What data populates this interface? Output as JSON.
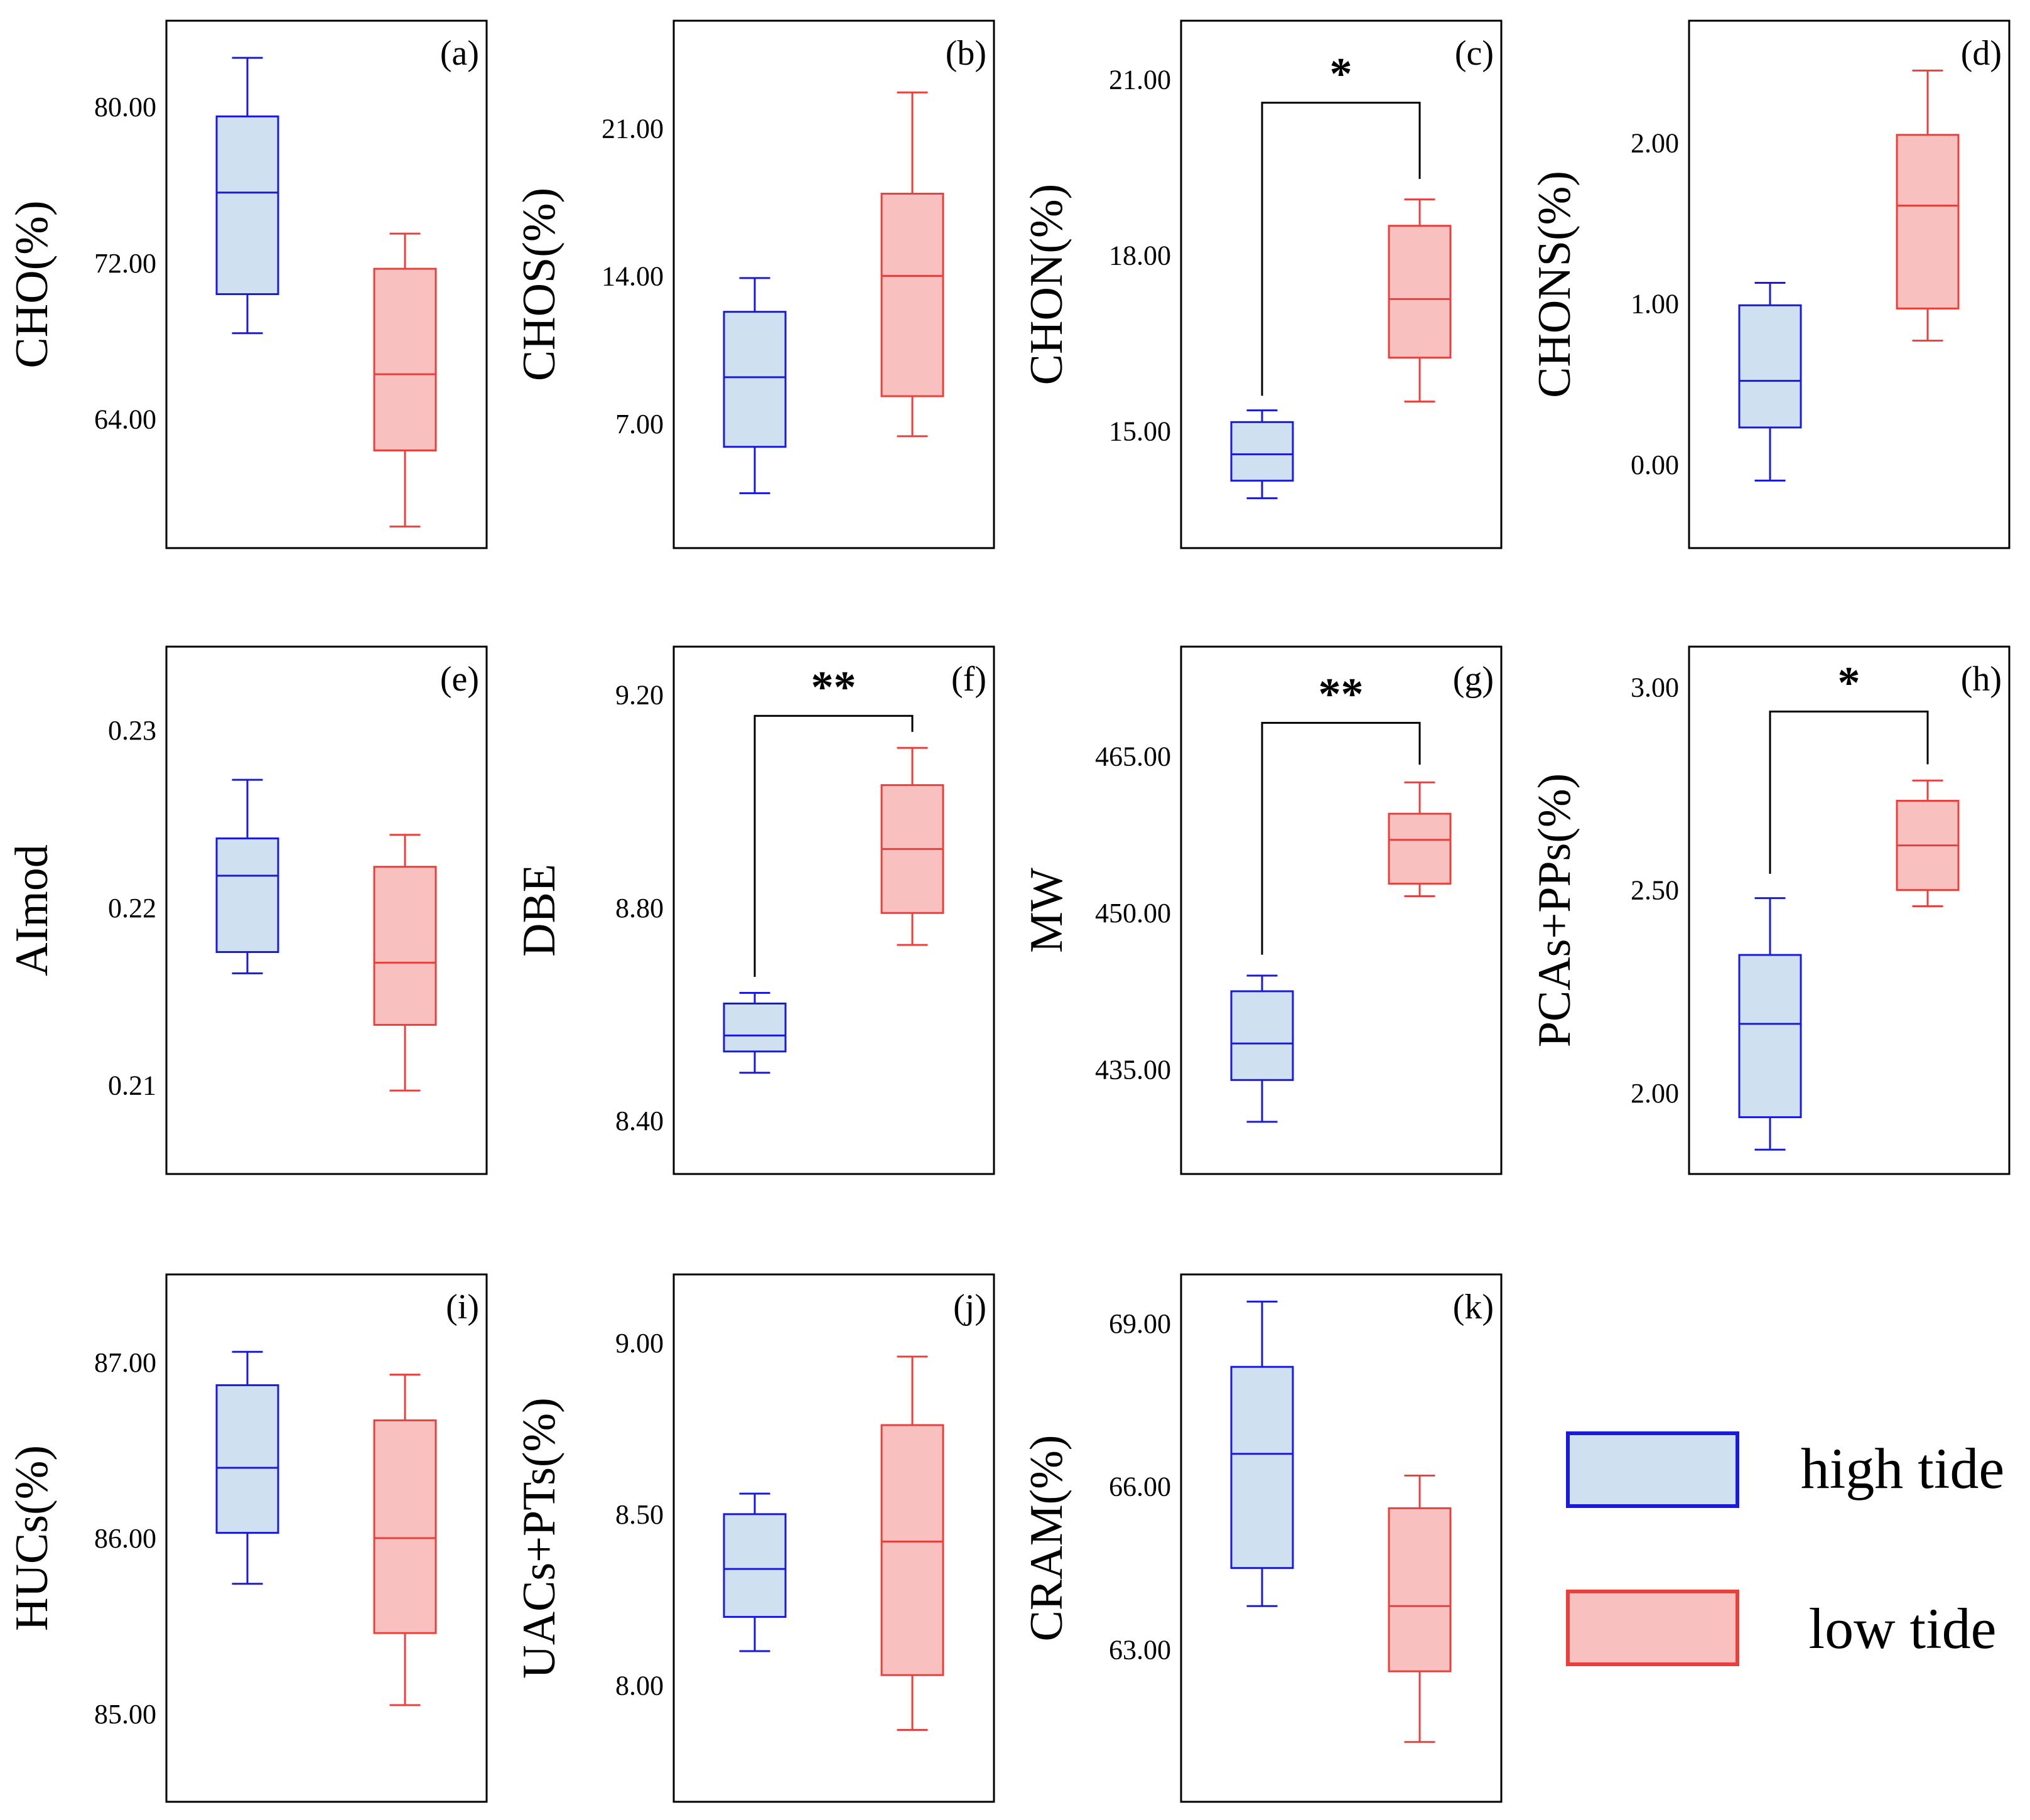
{
  "legend": {
    "items": [
      {
        "label": "high tide",
        "stroke": "#1a1adb",
        "fill": "#cfe0f1"
      },
      {
        "label": "low tide",
        "stroke": "#e8413d",
        "fill": "#f9c0c0"
      }
    ]
  },
  "chart_data": [
    {
      "type": "box",
      "panel_label": "(a)",
      "ylabel": "CHO(%)",
      "yticks": [
        "64.00",
        "72.00",
        "80.00"
      ],
      "ylim": [
        57.4,
        84.4
      ],
      "series": [
        {
          "name": "high tide",
          "whisker_low": 68.4,
          "q1": 70.4,
          "median": 75.6,
          "q3": 79.5,
          "whisker_high": 82.5
        },
        {
          "name": "low tide",
          "whisker_low": 58.5,
          "q1": 62.4,
          "median": 66.3,
          "q3": 71.7,
          "whisker_high": 73.5
        }
      ],
      "significance": null
    },
    {
      "type": "box",
      "panel_label": "(b)",
      "ylabel": "CHOS(%)",
      "yticks": [
        "7.00",
        "14.00",
        "21.00"
      ],
      "ylim": [
        1.1,
        26.1
      ],
      "series": [
        {
          "name": "high tide",
          "whisker_low": 3.7,
          "q1": 5.9,
          "median": 9.2,
          "q3": 12.3,
          "whisker_high": 13.9
        },
        {
          "name": "low tide",
          "whisker_low": 6.4,
          "q1": 8.3,
          "median": 14.0,
          "q3": 17.9,
          "whisker_high": 22.7
        }
      ],
      "significance": null
    },
    {
      "type": "box",
      "panel_label": "(c)",
      "ylabel": "CHON(%)",
      "yticks": [
        "15.00",
        "18.00",
        "21.00"
      ],
      "ylim": [
        13.0,
        22.0
      ],
      "series": [
        {
          "name": "high tide",
          "whisker_low": 13.85,
          "q1": 14.15,
          "median": 14.6,
          "q3": 15.15,
          "whisker_high": 15.35
        },
        {
          "name": "low tide",
          "whisker_low": 15.5,
          "q1": 16.25,
          "median": 17.25,
          "q3": 18.5,
          "whisker_high": 18.95
        }
      ],
      "significance": {
        "label": "*",
        "y": 20.6,
        "drop_low": 15.6,
        "drop_high": 19.3
      }
    },
    {
      "type": "box",
      "panel_label": "(d)",
      "ylabel": "CHONS(%)",
      "yticks": [
        "0.00",
        "1.00",
        "2.00"
      ],
      "ylim": [
        -0.52,
        2.76
      ],
      "series": [
        {
          "name": "high tide",
          "whisker_low": -0.1,
          "q1": 0.23,
          "median": 0.52,
          "q3": 0.99,
          "whisker_high": 1.13
        },
        {
          "name": "low tide",
          "whisker_low": 0.77,
          "q1": 0.97,
          "median": 1.61,
          "q3": 2.05,
          "whisker_high": 2.45
        }
      ],
      "significance": null
    },
    {
      "type": "box",
      "panel_label": "(e)",
      "ylabel": "AImod",
      "yticks": [
        "0.21",
        "0.22",
        "0.23"
      ],
      "ylim": [
        0.205,
        0.2347
      ],
      "series": [
        {
          "name": "high tide",
          "whisker_low": 0.2163,
          "q1": 0.2175,
          "median": 0.2218,
          "q3": 0.2239,
          "whisker_high": 0.2272
        },
        {
          "name": "low tide",
          "whisker_low": 0.2097,
          "q1": 0.2134,
          "median": 0.2169,
          "q3": 0.2223,
          "whisker_high": 0.2241
        }
      ],
      "significance": null
    },
    {
      "type": "box",
      "panel_label": "(f)",
      "ylabel": "DBE",
      "yticks": [
        "8.40",
        "8.80",
        "9.20"
      ],
      "ylim": [
        8.3,
        9.29
      ],
      "series": [
        {
          "name": "high tide",
          "whisker_low": 8.49,
          "q1": 8.53,
          "median": 8.56,
          "q3": 8.62,
          "whisker_high": 8.64
        },
        {
          "name": "low tide",
          "whisker_low": 8.73,
          "q1": 8.79,
          "median": 8.91,
          "q3": 9.03,
          "whisker_high": 9.1
        }
      ],
      "significance": {
        "label": "**",
        "y": 9.16,
        "drop_low": 8.67,
        "drop_high": 9.13
      }
    },
    {
      "type": "box",
      "panel_label": "(g)",
      "ylabel": "MW",
      "yticks": [
        "435.00",
        "450.00",
        "465.00"
      ],
      "ylim": [
        425.0,
        475.5
      ],
      "series": [
        {
          "name": "high tide",
          "whisker_low": 430.0,
          "q1": 434.0,
          "median": 437.5,
          "q3": 442.5,
          "whisker_high": 444.0
        },
        {
          "name": "low tide",
          "whisker_low": 451.6,
          "q1": 452.8,
          "median": 457.0,
          "q3": 459.5,
          "whisker_high": 462.5
        }
      ],
      "significance": {
        "label": "**",
        "y": 468.2,
        "drop_low": 446.0,
        "drop_high": 464.2
      }
    },
    {
      "type": "box",
      "panel_label": "(h)",
      "ylabel": "PCAs+PPs(%)",
      "yticks": [
        "2.00",
        "2.50",
        "3.00"
      ],
      "ylim": [
        1.8,
        3.1
      ],
      "series": [
        {
          "name": "high tide",
          "whisker_low": 1.86,
          "q1": 1.94,
          "median": 2.17,
          "q3": 2.34,
          "whisker_high": 2.48
        },
        {
          "name": "low tide",
          "whisker_low": 2.46,
          "q1": 2.5,
          "median": 2.61,
          "q3": 2.72,
          "whisker_high": 2.77
        }
      ],
      "significance": {
        "label": "*",
        "y": 2.94,
        "drop_low": 2.54,
        "drop_high": 2.81
      }
    },
    {
      "type": "box",
      "panel_label": "(i)",
      "ylabel": "HUCs(%)",
      "yticks": [
        "85.00",
        "86.00",
        "87.00"
      ],
      "ylim": [
        84.5,
        87.5
      ],
      "series": [
        {
          "name": "high tide",
          "whisker_low": 85.74,
          "q1": 86.03,
          "median": 86.4,
          "q3": 86.87,
          "whisker_high": 87.06
        },
        {
          "name": "low tide",
          "whisker_low": 85.05,
          "q1": 85.46,
          "median": 86.0,
          "q3": 86.67,
          "whisker_high": 86.93
        }
      ],
      "significance": null
    },
    {
      "type": "box",
      "panel_label": "(j)",
      "ylabel": "UACs+PTs(%)",
      "yticks": [
        "8.00",
        "8.50",
        "9.00"
      ],
      "ylim": [
        7.66,
        9.2
      ],
      "series": [
        {
          "name": "high tide",
          "whisker_low": 8.1,
          "q1": 8.2,
          "median": 8.34,
          "q3": 8.5,
          "whisker_high": 8.56
        },
        {
          "name": "low tide",
          "whisker_low": 7.87,
          "q1": 8.03,
          "median": 8.42,
          "q3": 8.76,
          "whisker_high": 8.96
        }
      ],
      "significance": null
    },
    {
      "type": "box",
      "panel_label": "(k)",
      "ylabel": "CRAM(%)",
      "yticks": [
        "63.00",
        "66.00",
        "69.00"
      ],
      "ylim": [
        60.2,
        69.9
      ],
      "series": [
        {
          "name": "high tide",
          "whisker_low": 63.8,
          "q1": 64.5,
          "median": 66.6,
          "q3": 68.2,
          "whisker_high": 69.4
        },
        {
          "name": "low tide",
          "whisker_low": 61.3,
          "q1": 62.6,
          "median": 63.8,
          "q3": 65.6,
          "whisker_high": 66.2
        }
      ],
      "significance": null
    }
  ]
}
